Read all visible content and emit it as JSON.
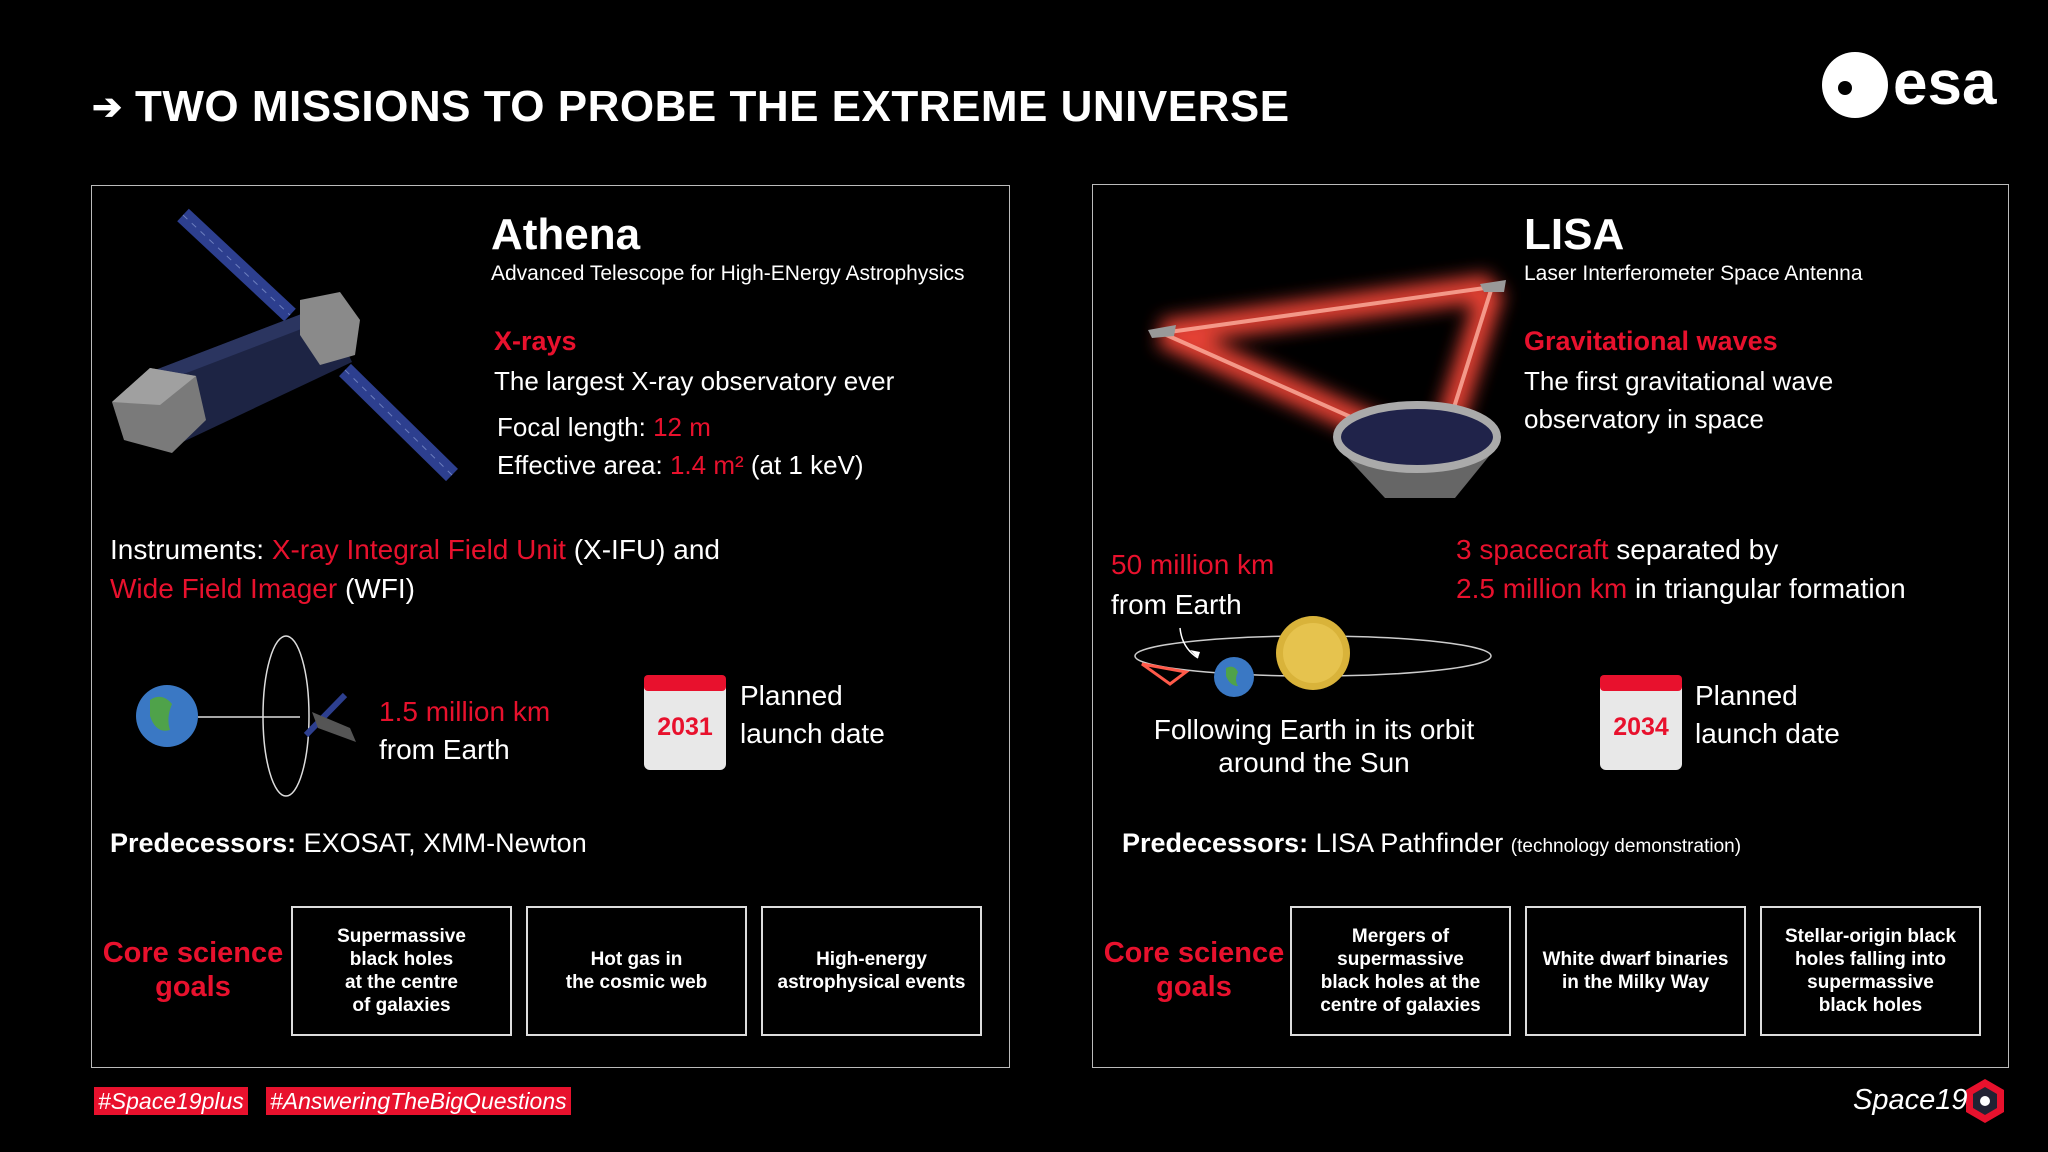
{
  "header": {
    "title": "TWO MISSIONS TO PROBE THE EXTREME UNIVERSE",
    "logo": "esa"
  },
  "missions": [
    {
      "name": "Athena",
      "full_name": "Advanced Telescope for High-ENergy Astrophysics",
      "band": "X-rays",
      "band_text": [
        "The largest X-ray observatory ever"
      ],
      "specs": [
        [
          {
            "text": "Focal length: "
          },
          {
            "text": "12 m",
            "red": true
          }
        ],
        [
          {
            "text": "Effective area: "
          },
          {
            "text": "1.4 m²",
            "red": true
          },
          {
            "text": " (at 1 keV)"
          }
        ]
      ],
      "details": [
        [
          {
            "text": "Instruments: "
          },
          {
            "text": "X-ray Integral Field Unit",
            "red": true
          },
          {
            "text": " (X-IFU) and"
          }
        ],
        [
          {
            "text": "Wide Field Imager",
            "red": true
          },
          {
            "text": " (WFI)"
          }
        ]
      ],
      "distance": [
        [
          {
            "text": "1.5 million km",
            "red": true
          }
        ],
        [
          {
            "text": "from Earth"
          }
        ]
      ],
      "launch_year": "2031",
      "launch_label": [
        "Planned",
        "launch date"
      ],
      "predecessors_label": "Predecessors:",
      "predecessors": "EXOSAT, XMM-Newton",
      "goals_label": [
        "Core science",
        "goals"
      ],
      "goals": [
        [
          "Supermassive",
          "black holes",
          "at the centre",
          "of galaxies"
        ],
        [
          "Hot gas in",
          "the cosmic web"
        ],
        [
          "High-energy",
          "astrophysical events"
        ]
      ]
    },
    {
      "name": "LISA",
      "full_name": "Laser Interferometer Space Antenna",
      "band": "Gravitational waves",
      "band_text": [
        "The first gravitational wave",
        "observatory in space"
      ],
      "details": [
        [
          {
            "text": "3 spacecraft",
            "red": true
          },
          {
            "text": " separated by"
          }
        ],
        [
          {
            "text": "2.5 million km",
            "red": true
          },
          {
            "text": " in triangular formation"
          }
        ]
      ],
      "distance": [
        [
          {
            "text": "50 million km",
            "red": true
          }
        ],
        [
          {
            "text": "from Earth"
          }
        ]
      ],
      "orbit_caption": [
        "Following Earth in its orbit",
        "around the Sun"
      ],
      "launch_year": "2034",
      "launch_label": [
        "Planned",
        "launch date"
      ],
      "predecessors_label": "Predecessors:",
      "predecessors": "LISA Pathfinder",
      "predecessors_note": "(technology demonstration)",
      "goals_label": [
        "Core science",
        "goals"
      ],
      "goals": [
        [
          "Mergers of",
          "supermassive",
          "black holes at the",
          "centre of galaxies"
        ],
        [
          "White dwarf binaries",
          "in the Milky Way"
        ],
        [
          "Stellar-origin black",
          "holes falling into",
          "supermassive",
          "black holes"
        ]
      ]
    }
  ],
  "footer": {
    "hashtags": [
      "#Space19plus",
      "#AnsweringTheBigQuestions"
    ],
    "brand": "Space19"
  }
}
